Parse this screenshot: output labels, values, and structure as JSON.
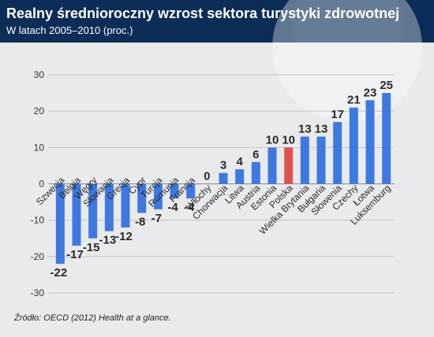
{
  "header": {
    "title": "Realny średnioroczny wzrost sektora turystyki zdrowotnej",
    "subtitle": "W latach 2005–2010 (proc.)"
  },
  "footer": {
    "source": "Źródło: OECD (2012) Health at a glance."
  },
  "colors": {
    "bar": "#3d79e0",
    "highlight": "#e05252",
    "header": "#0b2d57",
    "background": "#e9eaeb"
  },
  "chart_data": {
    "type": "bar",
    "title": "Realny średnioroczny wzrost sektora turystyki zdrowotnej",
    "subtitle": "W latach 2005–2010 (proc.)",
    "xlabel": "",
    "ylabel": "",
    "ylim": [
      -30,
      30
    ],
    "yticks": [
      "-30",
      "-20",
      "-10",
      "0",
      "10",
      "20",
      "30"
    ],
    "grid": true,
    "legend": "none",
    "highlight": "Polska",
    "categories": [
      "Szwecja",
      "Belgia",
      "Węgry",
      "Słowacja",
      "Grecja",
      "Cypr",
      "Turcja",
      "Rumunia",
      "Francja",
      "Włochy",
      "Chorwacja",
      "Litwa",
      "Austria",
      "Estonia",
      "Polska",
      "Wielka Brytania",
      "Bułgaria",
      "Słowenia",
      "Czechy",
      "Łotwa",
      "Luksemburg"
    ],
    "values": [
      -22,
      -17,
      -15,
      -13,
      -12,
      -8,
      -7,
      -4,
      -4,
      0,
      3,
      4,
      6,
      10,
      10,
      13,
      13,
      17,
      21,
      23,
      25
    ],
    "value_labels": [
      "-22",
      "-17",
      "-15",
      "-13",
      "-12",
      "-8",
      "-7",
      "-4",
      "-4",
      "0",
      "3",
      "4",
      "6",
      "10",
      "10",
      "13",
      "13",
      "17",
      "21",
      "23",
      "25"
    ]
  }
}
